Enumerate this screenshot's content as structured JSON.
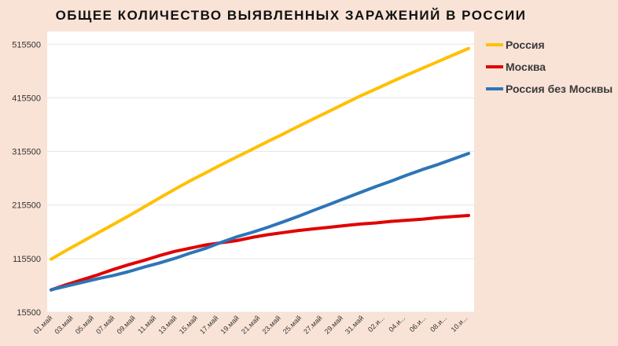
{
  "chart_data": {
    "type": "line",
    "title": "ОБЩЕЕ КОЛИЧЕСТВО ВЫЯВЛЕННЫХ ЗАРАЖЕНИЙ В РОССИИ",
    "xlabel": "",
    "ylabel": "",
    "ylim": [
      15500,
      555500
    ],
    "yticks": [
      15500,
      115500,
      215500,
      315500,
      415500,
      515500
    ],
    "ytick_labels": [
      "15500",
      "115500",
      "215500",
      "315500",
      "415500",
      "515500"
    ],
    "x_tick_labels": [
      "01.май",
      "03.май",
      "05.май",
      "07.май",
      "09.май",
      "11.май",
      "13.май",
      "15.май",
      "17.май",
      "19.май",
      "21.май",
      "23.май",
      "25.май",
      "27.май",
      "29.май",
      "31.май",
      "02.и...",
      "04.и...",
      "06.и...",
      "08.и...",
      "10.и..."
    ],
    "grid": true,
    "legend_position": "right",
    "series": [
      {
        "name": "Россия",
        "color": "#ffc000",
        "values": [
          114400,
          131200,
          147000,
          162900,
          178900,
          195000,
          211600,
          228400,
          244800,
          260700,
          275600,
          290700,
          305100,
          319400,
          333800,
          348000,
          362500,
          376800,
          390700,
          405000,
          419000,
          432000,
          445200,
          458100,
          470500,
          483000,
          495300,
          507700
        ]
      },
      {
        "name": "Москва",
        "color": "#e00000",
        "values": [
          57000,
          67000,
          76000,
          85000,
          95000,
          104000,
          112000,
          121000,
          129000,
          135000,
          141000,
          145000,
          149000,
          155000,
          160000,
          164000,
          168000,
          171000,
          174000,
          177000,
          180000,
          182000,
          185000,
          187000,
          189000,
          192000,
          194000,
          196000
        ]
      },
      {
        "name": "Россия без Москвы",
        "color": "#2e75b6",
        "values": [
          57400,
          64200,
          71000,
          77900,
          83900,
          91000,
          99600,
          107400,
          115800,
          125700,
          134600,
          145700,
          156100,
          164400,
          173800,
          184000,
          194500,
          205800,
          216700,
          228000,
          239000,
          250000,
          260200,
          271100,
          281500,
          291000,
          301300,
          311700
        ]
      }
    ]
  }
}
